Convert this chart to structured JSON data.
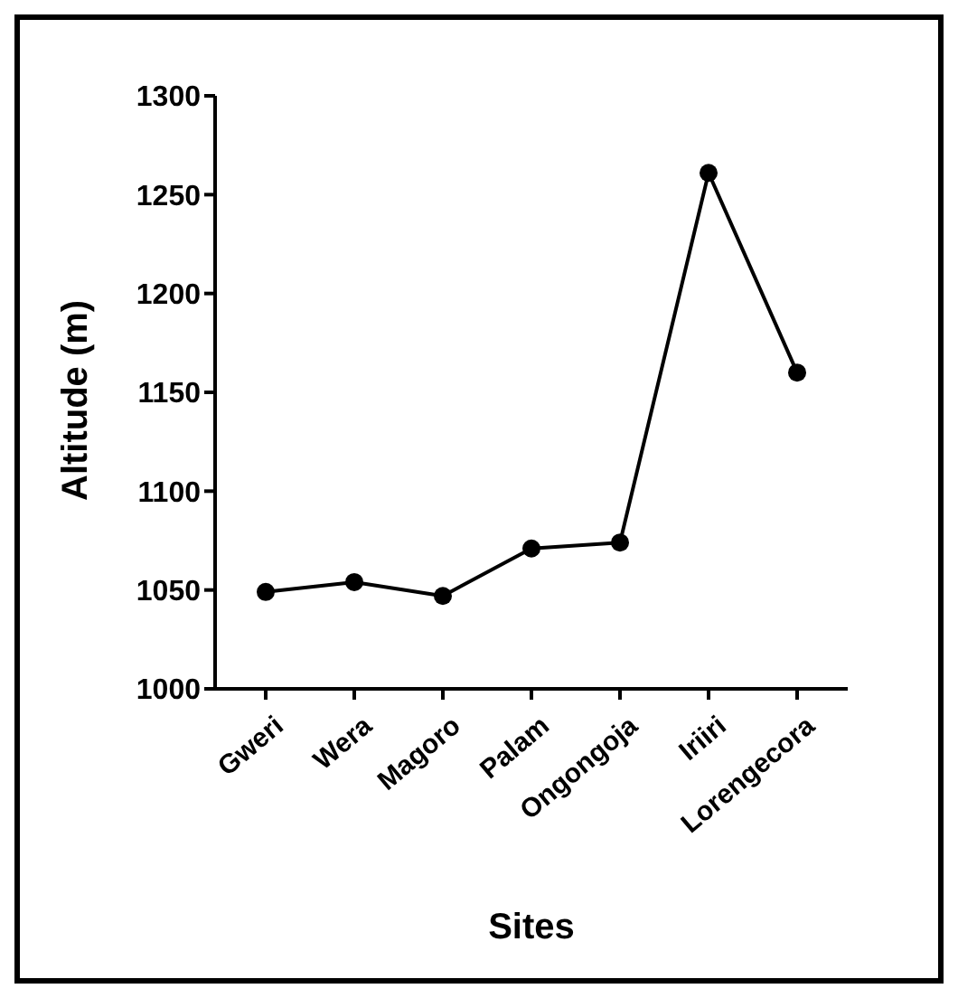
{
  "chart_data": {
    "type": "line",
    "xlabel": "Sites",
    "ylabel": "Altitude (m)",
    "categories": [
      "Gweri",
      "Wera",
      "Magoro",
      "Palam",
      "Ongongoja",
      "Iriiri",
      "Lorengecora"
    ],
    "series": [
      {
        "color": "#000000",
        "values": [
          1049,
          1054,
          1047,
          1071,
          1074,
          1261,
          1160
        ]
      }
    ],
    "ylim": [
      1000,
      1300
    ],
    "yticks": [
      1000,
      1050,
      1100,
      1150,
      1200,
      1250,
      1300
    ],
    "grid": false,
    "legend": false,
    "marker": "circle",
    "line_style": "solid"
  }
}
